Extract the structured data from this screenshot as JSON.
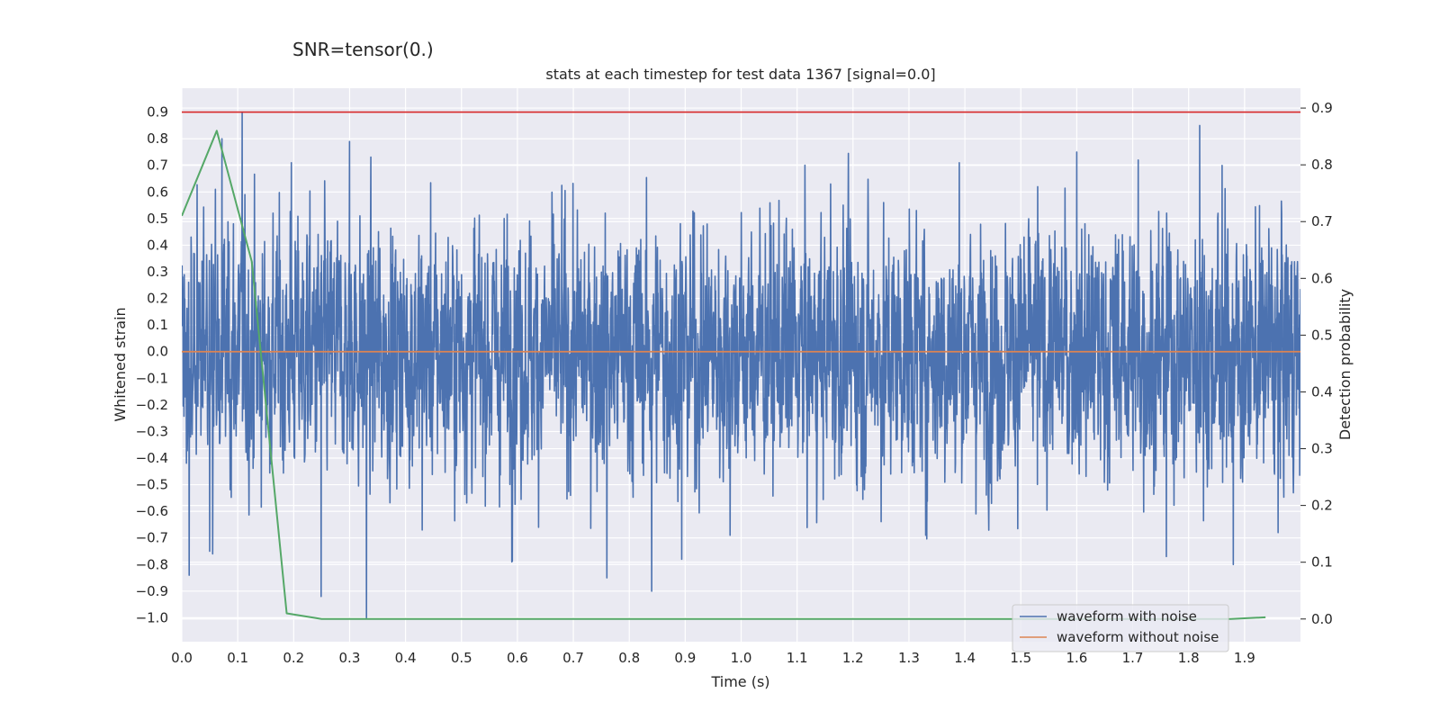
{
  "suptitle": "SNR=tensor(0.)",
  "chart_data": {
    "type": "line",
    "title": "stats at each timestep for test data 1367 [signal=0.0]",
    "xlabel": "Time (s)",
    "ylabel": "Whitened strain",
    "y2label": "Detection probability",
    "xlim": [
      0.0,
      2.0
    ],
    "ylim": [
      -1.09,
      0.99
    ],
    "y2lim": [
      -0.04,
      0.935
    ],
    "xticks": [
      "0.0",
      "0.1",
      "0.2",
      "0.3",
      "0.4",
      "0.5",
      "0.6",
      "0.7",
      "0.8",
      "0.9",
      "1.0",
      "1.1",
      "1.2",
      "1.3",
      "1.4",
      "1.5",
      "1.6",
      "1.7",
      "1.8",
      "1.9"
    ],
    "yticks": [
      "0.9",
      "0.8",
      "0.7",
      "0.6",
      "0.5",
      "0.4",
      "0.3",
      "0.2",
      "0.1",
      "0.0",
      "−0.1",
      "−0.2",
      "−0.3",
      "−0.4",
      "−0.5",
      "−0.6",
      "−0.7",
      "−0.8",
      "−0.9",
      "−1.0"
    ],
    "y2ticks": [
      "0.9",
      "0.8",
      "0.7",
      "0.6",
      "0.5",
      "0.4",
      "0.3",
      "0.2",
      "0.1",
      "0.0"
    ],
    "grid": true,
    "legend_placement": "lower-right",
    "threshold": {
      "y": 0.9,
      "color": "#d62728"
    },
    "series": [
      {
        "name": "waveform with noise",
        "axis": "left",
        "color": "#4c72b0",
        "generator": {
          "n": 4096,
          "x_start": 0.0,
          "x_end": 2.0,
          "amplitude": 0.22,
          "min": -1.0,
          "max": 0.9
        },
        "peaks": [
          [
            0.013,
            -0.84
          ],
          [
            0.05,
            -0.75
          ],
          [
            0.055,
            -0.76
          ],
          [
            0.06,
            0.61
          ],
          [
            0.072,
            0.8
          ],
          [
            0.108,
            0.9
          ],
          [
            0.196,
            0.71
          ],
          [
            0.249,
            -0.92
          ],
          [
            0.3,
            0.79
          ],
          [
            0.33,
            -1.0
          ],
          [
            0.43,
            -0.67
          ],
          [
            0.59,
            -0.79
          ],
          [
            0.76,
            -0.85
          ],
          [
            0.84,
            -0.9
          ],
          [
            0.894,
            -0.78
          ],
          [
            0.98,
            -0.69
          ],
          [
            1.16,
            0.63
          ],
          [
            1.33,
            -0.69
          ],
          [
            1.39,
            0.71
          ],
          [
            1.53,
            0.62
          ],
          [
            1.6,
            0.75
          ],
          [
            1.71,
            0.72
          ],
          [
            1.76,
            -0.77
          ],
          [
            1.82,
            0.85
          ],
          [
            1.86,
            0.7
          ],
          [
            1.88,
            -0.8
          ],
          [
            1.96,
            -0.68
          ]
        ]
      },
      {
        "name": "waveform without noise",
        "axis": "left",
        "color": "#dd8452",
        "x": [
          0.0,
          2.0
        ],
        "y": [
          0.0,
          0.0
        ]
      },
      {
        "name": "",
        "axis": "right",
        "color": "#55a868",
        "x": [
          0.0,
          0.0625,
          0.125,
          0.1875,
          0.25,
          0.3125,
          0.375,
          0.4375,
          0.5,
          0.5625,
          0.625,
          0.6875,
          0.75,
          0.8125,
          0.875,
          0.9375,
          1.0,
          1.0625,
          1.125,
          1.1875,
          1.25,
          1.3125,
          1.375,
          1.4375,
          1.5,
          1.5625,
          1.625,
          1.6875,
          1.75,
          1.8125,
          1.875,
          1.9375
        ],
        "y": [
          0.71,
          0.86,
          0.63,
          0.01,
          0.0,
          0.0,
          0.0,
          0.0,
          0.0,
          0.0,
          0.0,
          0.0,
          0.0,
          0.0,
          0.0,
          0.0,
          0.0,
          0.0,
          0.0,
          0.0,
          0.0,
          0.0,
          0.0,
          0.0,
          0.0,
          0.0,
          0.0,
          0.0,
          0.0,
          0.0,
          0.0,
          0.003
        ]
      }
    ]
  }
}
